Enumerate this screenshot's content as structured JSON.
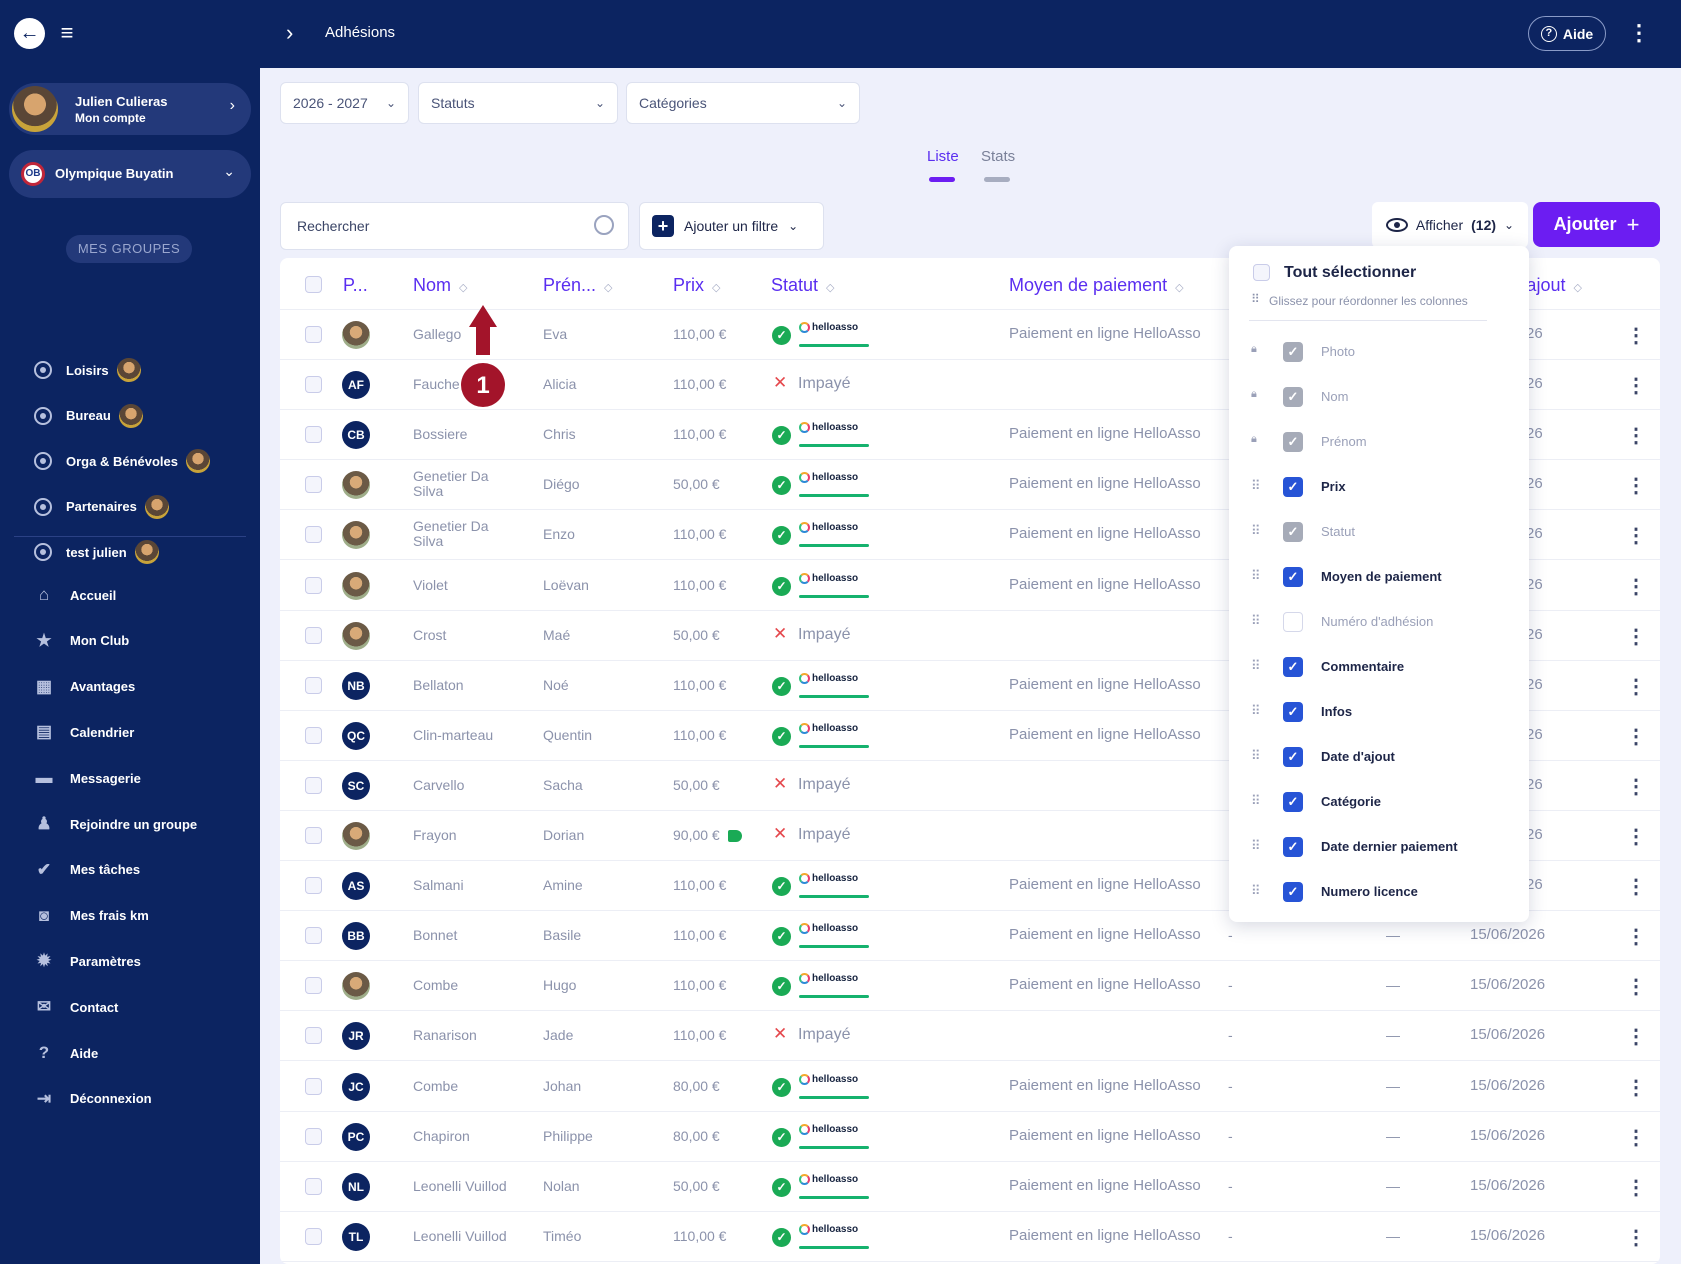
{
  "topbar": {
    "breadcrumb": "Adhésions",
    "help_label": "Aide"
  },
  "account": {
    "name": "Julien Culieras",
    "subtitle": "Mon compte"
  },
  "club": {
    "name": "Olympique Buyatin",
    "logo": "OB"
  },
  "groups_title": "MES GROUPES",
  "groups": [
    "Loisirs",
    "Bureau",
    "Orga & Bénévoles",
    "Partenaires",
    "test julien"
  ],
  "nav": [
    {
      "label": "Accueil",
      "icon": "home-icon"
    },
    {
      "label": "Mon Club",
      "icon": "star-icon"
    },
    {
      "label": "Avantages",
      "icon": "gift-icon"
    },
    {
      "label": "Calendrier",
      "icon": "calendar-icon"
    },
    {
      "label": "Messagerie",
      "icon": "chat-icon"
    },
    {
      "label": "Rejoindre un groupe",
      "icon": "user-plus-icon"
    },
    {
      "label": "Mes tâches",
      "icon": "user-check-icon"
    },
    {
      "label": "Mes frais km",
      "icon": "car-icon"
    },
    {
      "label": "Paramètres",
      "icon": "gear-icon"
    },
    {
      "label": "Contact",
      "icon": "mail-icon"
    },
    {
      "label": "Aide",
      "icon": "help-icon"
    },
    {
      "label": "Déconnexion",
      "icon": "logout-icon"
    }
  ],
  "filters": {
    "season": "2026 - 2027",
    "status": "Statuts",
    "category": "Catégories"
  },
  "tabs": {
    "list": "Liste",
    "stats": "Stats"
  },
  "search": {
    "placeholder": "Rechercher"
  },
  "add_filter": "Ajouter un filtre",
  "show_cols": {
    "label": "Afficher",
    "count": "(12)"
  },
  "add_button": "Ajouter",
  "columns": {
    "photo": "P...",
    "nom": "Nom",
    "prenom": "Prén...",
    "prix": "Prix",
    "statut": "Statut",
    "moyen": "Moyen de paiement",
    "date_ajout": "'ajout"
  },
  "rows": [
    {
      "photo": "ph",
      "nom": "Gallego",
      "prenom": "Eva",
      "prix": "110,00 €",
      "paid": true,
      "moyen": "Paiement en ligne HelloAsso",
      "d": "26",
      "a": "",
      "c": ""
    },
    {
      "photo": "AF",
      "nom": "Fauche",
      "prenom": "Alicia",
      "prix": "110,00 €",
      "paid": false,
      "moyen": "",
      "d": "26",
      "a": "",
      "c": ""
    },
    {
      "photo": "CB",
      "nom": "Bossiere",
      "prenom": "Chris",
      "prix": "110,00 €",
      "paid": true,
      "moyen": "Paiement en ligne HelloAsso",
      "d": "26",
      "a": "",
      "c": ""
    },
    {
      "photo": "ph",
      "nom": "Genetier Da",
      "nom2": "Silva",
      "prenom": "Diégo",
      "prix": "50,00 €",
      "paid": true,
      "moyen": "Paiement en ligne HelloAsso",
      "d": "26",
      "a": "",
      "c": ""
    },
    {
      "photo": "ph",
      "nom": "Genetier Da",
      "nom2": "Silva",
      "prenom": "Enzo",
      "prix": "110,00 €",
      "paid": true,
      "moyen": "Paiement en ligne HelloAsso",
      "d": "26",
      "a": "",
      "c": ""
    },
    {
      "photo": "ph",
      "nom": "Violet",
      "prenom": "Loëvan",
      "prix": "110,00 €",
      "paid": true,
      "moyen": "Paiement en ligne HelloAsso",
      "d": "26",
      "a": "",
      "c": ""
    },
    {
      "photo": "ph",
      "nom": "Crost",
      "prenom": "Maé",
      "prix": "50,00 €",
      "paid": false,
      "moyen": "",
      "d": "26",
      "a": "",
      "c": ""
    },
    {
      "photo": "NB",
      "nom": "Bellaton",
      "prenom": "Noé",
      "prix": "110,00 €",
      "paid": true,
      "moyen": "Paiement en ligne HelloAsso",
      "d": "26",
      "a": "",
      "c": ""
    },
    {
      "photo": "QC",
      "nom": "Clin-marteau",
      "prenom": "Quentin",
      "prix": "110,00 €",
      "paid": true,
      "moyen": "Paiement en ligne HelloAsso",
      "d": "26",
      "a": "",
      "c": ""
    },
    {
      "photo": "SC",
      "nom": "Carvello",
      "prenom": "Sacha",
      "prix": "50,00 €",
      "paid": false,
      "moyen": "",
      "d": "26",
      "a": "",
      "c": ""
    },
    {
      "photo": "ph",
      "nom": "Frayon",
      "prenom": "Dorian",
      "prix": "90,00 €",
      "tag": true,
      "paid": false,
      "moyen": "",
      "d": "26",
      "a": "",
      "c": ""
    },
    {
      "photo": "AS",
      "nom": "Salmani",
      "prenom": "Amine",
      "prix": "110,00 €",
      "paid": true,
      "moyen": "Paiement en ligne HelloAsso",
      "d": "26",
      "a": "",
      "c": ""
    },
    {
      "photo": "BB",
      "nom": "Bonnet",
      "prenom": "Basile",
      "prix": "110,00 €",
      "paid": true,
      "moyen": "Paiement en ligne HelloAsso",
      "d": "15/06/2026",
      "a": "-",
      "c": "—"
    },
    {
      "photo": "ph",
      "nom": "Combe",
      "prenom": "Hugo",
      "prix": "110,00 €",
      "paid": true,
      "moyen": "Paiement en ligne HelloAsso",
      "d": "15/06/2026",
      "a": "-",
      "c": "—"
    },
    {
      "photo": "JR",
      "nom": "Ranarison",
      "prenom": "Jade",
      "prix": "110,00 €",
      "paid": false,
      "moyen": "",
      "d": "15/06/2026",
      "a": "-",
      "c": "—"
    },
    {
      "photo": "JC",
      "nom": "Combe",
      "prenom": "Johan",
      "prix": "80,00 €",
      "paid": true,
      "moyen": "Paiement en ligne HelloAsso",
      "d": "15/06/2026",
      "a": "-",
      "c": "—"
    },
    {
      "photo": "PC",
      "nom": "Chapiron",
      "prenom": "Philippe",
      "prix": "80,00 €",
      "paid": true,
      "moyen": "Paiement en ligne HelloAsso",
      "d": "15/06/2026",
      "a": "-",
      "c": "—"
    },
    {
      "photo": "NL",
      "nom": "Leonelli Vuillod",
      "prenom": "Nolan",
      "prix": "50,00 €",
      "paid": true,
      "moyen": "Paiement en ligne HelloAsso",
      "d": "15/06/2026",
      "a": "-",
      "c": "—"
    },
    {
      "photo": "TL",
      "nom": "Leonelli Vuillod",
      "prenom": "Timéo",
      "prix": "110,00 €",
      "paid": true,
      "moyen": "Paiement en ligne HelloAsso",
      "d": "15/06/2026",
      "a": "-",
      "c": "—"
    }
  ],
  "status": {
    "unpaid": "Impayé",
    "helloasso": "helloasso"
  },
  "popup": {
    "select_all": "Tout sélectionner",
    "hint": "Glissez pour réordonner les colonnes",
    "items": [
      {
        "label": "Photo",
        "state": "locked"
      },
      {
        "label": "Nom",
        "state": "locked"
      },
      {
        "label": "Prénom",
        "state": "locked"
      },
      {
        "label": "Prix",
        "state": "on"
      },
      {
        "label": "Statut",
        "state": "grey"
      },
      {
        "label": "Moyen de paiement",
        "state": "on"
      },
      {
        "label": "Numéro d'adhésion",
        "state": "off"
      },
      {
        "label": "Commentaire",
        "state": "on"
      },
      {
        "label": "Infos",
        "state": "on"
      },
      {
        "label": "Date d'ajout",
        "state": "on"
      },
      {
        "label": "Catégorie",
        "state": "on"
      },
      {
        "label": "Date dernier paiement",
        "state": "on"
      },
      {
        "label": "Numero licence",
        "state": "on"
      }
    ]
  },
  "annotation": {
    "number": "1"
  },
  "colors": {
    "navy": "#0c2461",
    "accent": "#6c1df2",
    "header_text": "#5a2ef0",
    "checkbox": "#2754d6",
    "success": "#1aaa55",
    "danger": "#e5484d",
    "annotation": "#a3142a"
  }
}
